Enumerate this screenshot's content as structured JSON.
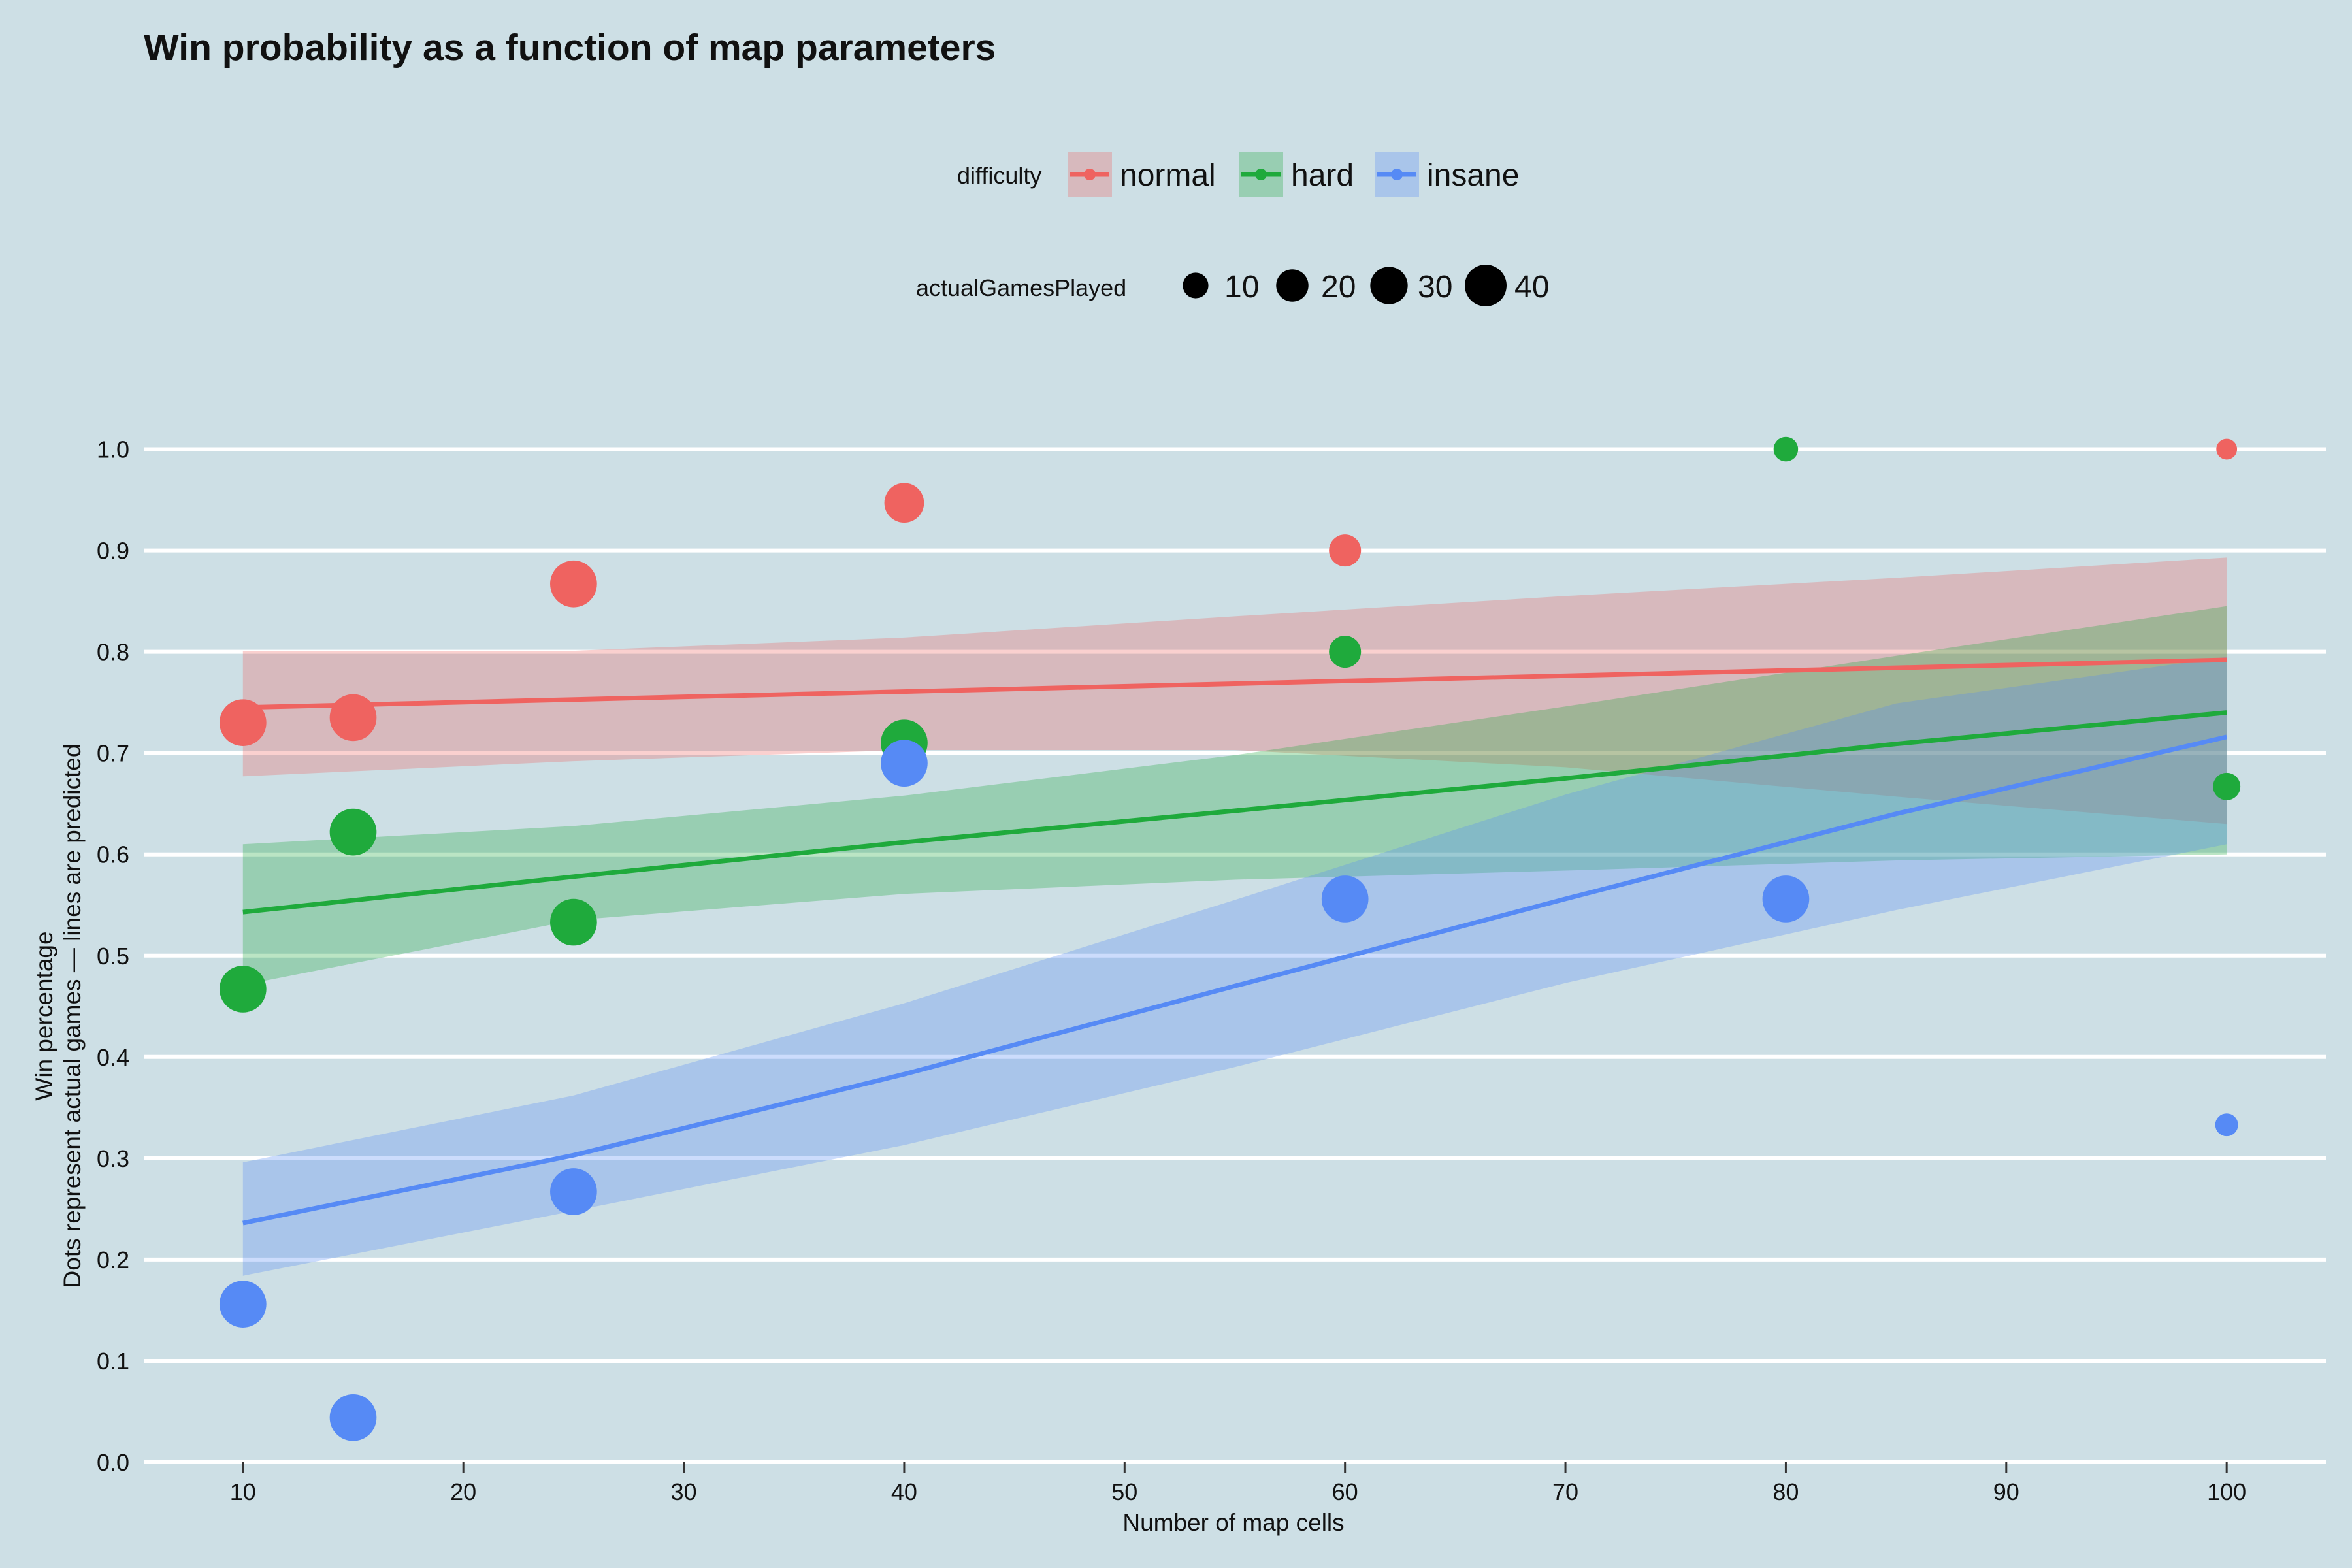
{
  "colors": {
    "background": "#cddfe5",
    "grid": "#ffffff",
    "normal": "#ef6360",
    "hard": "#1faa3c",
    "insane": "#568af5"
  },
  "chart_data": {
    "type": "scatter",
    "title": "Win probability as a function of map parameters",
    "xlabel": "Number of map cells",
    "ylabel_lines": [
      "Win percentage",
      "Dots represent actual games — lines are predicted"
    ],
    "xlim": [
      5.5,
      104.5
    ],
    "ylim": [
      0,
      1.0
    ],
    "x_ticks": [
      10,
      20,
      30,
      40,
      50,
      60,
      70,
      80,
      90,
      100
    ],
    "y_ticks": [
      0.0,
      0.1,
      0.2,
      0.3,
      0.4,
      0.5,
      0.6,
      0.7,
      0.8,
      0.9,
      1.0
    ],
    "y_tick_labels": [
      "0.0",
      "0.1",
      "0.2",
      "0.3",
      "0.4",
      "0.5",
      "0.6",
      "0.7",
      "0.8",
      "0.9",
      "1.0"
    ],
    "grid": true,
    "legend_position": "top",
    "legend": {
      "color_title": "difficulty",
      "size_title": "actualGamesPlayed",
      "size_entries": [
        10,
        20,
        30,
        40
      ]
    },
    "series": [
      {
        "name": "normal",
        "color": "#ef6360",
        "points": [
          {
            "x": 10,
            "y": 0.73,
            "n": 30
          },
          {
            "x": 15,
            "y": 0.735,
            "n": 30
          },
          {
            "x": 25,
            "y": 0.867,
            "n": 30
          },
          {
            "x": 40,
            "y": 0.947,
            "n": 19
          },
          {
            "x": 60,
            "y": 0.9,
            "n": 10
          },
          {
            "x": 100,
            "y": 1.0,
            "n": 2
          }
        ],
        "fit": {
          "x": [
            10,
            100
          ],
          "y": [
            0.745,
            0.792
          ]
        },
        "band": {
          "x": [
            10,
            25,
            40,
            55,
            70,
            85,
            100
          ],
          "lower": [
            0.677,
            0.692,
            0.703,
            0.703,
            0.686,
            0.657,
            0.63
          ],
          "upper": [
            0.801,
            0.801,
            0.814,
            0.835,
            0.855,
            0.873,
            0.893
          ]
        }
      },
      {
        "name": "hard",
        "color": "#1faa3c",
        "points": [
          {
            "x": 10,
            "y": 0.467,
            "n": 30
          },
          {
            "x": 15,
            "y": 0.622,
            "n": 30
          },
          {
            "x": 25,
            "y": 0.533,
            "n": 30
          },
          {
            "x": 40,
            "y": 0.71,
            "n": 30
          },
          {
            "x": 60,
            "y": 0.8,
            "n": 10
          },
          {
            "x": 80,
            "y": 1.0,
            "n": 4
          },
          {
            "x": 100,
            "y": 0.667,
            "n": 6
          }
        ],
        "fit": {
          "x": [
            10,
            25,
            40,
            55,
            70,
            85,
            100
          ],
          "y": [
            0.543,
            0.578,
            0.612,
            0.643,
            0.675,
            0.709,
            0.74
          ]
        },
        "band": {
          "x": [
            10,
            25,
            40,
            55,
            70,
            85,
            100
          ],
          "lower": [
            0.471,
            0.535,
            0.561,
            0.575,
            0.584,
            0.594,
            0.6
          ],
          "upper": [
            0.61,
            0.628,
            0.658,
            0.698,
            0.746,
            0.796,
            0.845
          ]
        }
      },
      {
        "name": "insane",
        "color": "#568af5",
        "points": [
          {
            "x": 10,
            "y": 0.156,
            "n": 30
          },
          {
            "x": 15,
            "y": 0.044,
            "n": 30
          },
          {
            "x": 25,
            "y": 0.267,
            "n": 30
          },
          {
            "x": 40,
            "y": 0.69,
            "n": 30
          },
          {
            "x": 60,
            "y": 0.556,
            "n": 30
          },
          {
            "x": 80,
            "y": 0.556,
            "n": 30
          },
          {
            "x": 100,
            "y": 0.333,
            "n": 3
          }
        ],
        "fit": {
          "x": [
            10,
            25,
            40,
            55,
            70,
            85,
            100
          ],
          "y": [
            0.236,
            0.303,
            0.383,
            0.47,
            0.556,
            0.64,
            0.716
          ]
        },
        "band": {
          "x": [
            10,
            25,
            40,
            55,
            70,
            85,
            100
          ],
          "lower": [
            0.184,
            0.248,
            0.313,
            0.39,
            0.473,
            0.545,
            0.61
          ],
          "upper": [
            0.296,
            0.362,
            0.453,
            0.555,
            0.659,
            0.749,
            0.795
          ]
        }
      }
    ]
  }
}
